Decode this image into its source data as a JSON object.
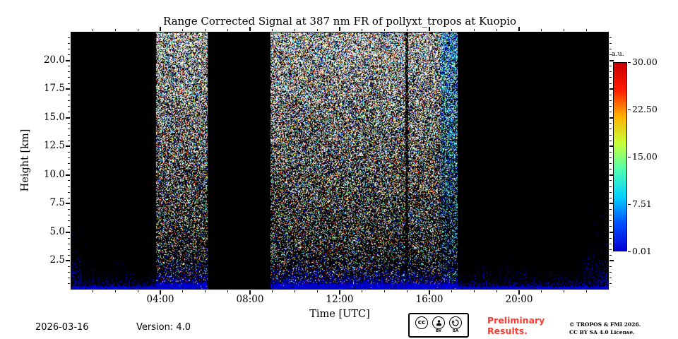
{
  "title": "Range Corrected Signal at 387 nm FR of pollyxt_tropos at Kuopio",
  "axes": {
    "x_label": "Time [UTC]",
    "y_label": "Height [km]",
    "x_tick_labels": [
      "04:00",
      "08:00",
      "12:00",
      "16:00",
      "20:00"
    ],
    "x_tick_hours": [
      4,
      8,
      12,
      16,
      20
    ],
    "y_tick_labels": [
      "20.0",
      "17.5",
      "15.0",
      "12.5",
      "10.0",
      "7.5",
      "5.0",
      "2.5"
    ],
    "y_tick_km": [
      20.0,
      17.5,
      15.0,
      12.5,
      10.0,
      7.5,
      5.0,
      2.5
    ]
  },
  "colorbar": {
    "unit": "a.u.",
    "tick_labels": [
      "30.00",
      "22.50",
      "15.00",
      "7.51",
      "0.01"
    ],
    "colors_bottom_to_top": [
      "#0000d1",
      "#004dff",
      "#00d1ff",
      "#4dffb2",
      "#c7ff38",
      "#ffb200",
      "#ff1a00",
      "#c80000"
    ]
  },
  "footer": {
    "date": "2026-03-16",
    "version": "Version: 4.0",
    "license_badge": {
      "cc": "cc",
      "by": "BY",
      "sa": "SA"
    },
    "preliminary_line1": "Preliminary",
    "preliminary_line2": "Results.",
    "copyright_line1": "© TROPOS & FMI 2026.",
    "copyright_line2": "CC BY SA 4.0 License."
  },
  "colors": {
    "preliminary_red": "#ff3b30",
    "plot_background": "#000000"
  },
  "chart_data": {
    "type": "heatmap",
    "title": "Range Corrected Signal at 387 nm FR of pollyxt_tropos at Kuopio",
    "xlabel": "Time [UTC]",
    "ylabel": "Height [km]",
    "x_range_hours": [
      0,
      24
    ],
    "y_range_km": [
      0,
      22.5
    ],
    "x_ticks_hours": [
      4,
      8,
      12,
      16,
      20
    ],
    "y_ticks_km": [
      2.5,
      5.0,
      7.5,
      10.0,
      12.5,
      15.0,
      17.5,
      20.0
    ],
    "colorbar": {
      "unit": "a.u.",
      "min": 0.01,
      "max": 30.0,
      "ticks": [
        0.01,
        7.51,
        15.0,
        22.5,
        30.0
      ],
      "colormap": "jet"
    },
    "background": "black",
    "segments": [
      {
        "start_hour": 0.0,
        "end_hour": 3.8,
        "kind": "night-clear"
      },
      {
        "start_hour": 3.8,
        "end_hour": 6.1,
        "kind": "daylight-noise"
      },
      {
        "start_hour": 6.1,
        "end_hour": 8.9,
        "kind": "no-data"
      },
      {
        "start_hour": 8.9,
        "end_hour": 14.9,
        "kind": "daylight-noise"
      },
      {
        "start_hour": 14.9,
        "end_hour": 15.05,
        "kind": "dim"
      },
      {
        "start_hour": 15.05,
        "end_hour": 16.5,
        "kind": "daylight-noise"
      },
      {
        "start_hour": 16.5,
        "end_hour": 17.25,
        "kind": "dusk-transition"
      },
      {
        "start_hour": 17.25,
        "end_hour": 24.0,
        "kind": "night-clear"
      }
    ],
    "near_ground_signal_km": 0.5,
    "description": "Noisy range-corrected lidar signal: dense white/colored speckle noise during daylight hours increasing with height, black background with shallow blue near-ground aerosol layer at night, instrument data gap roughly 06:00-08:50 UTC."
  }
}
